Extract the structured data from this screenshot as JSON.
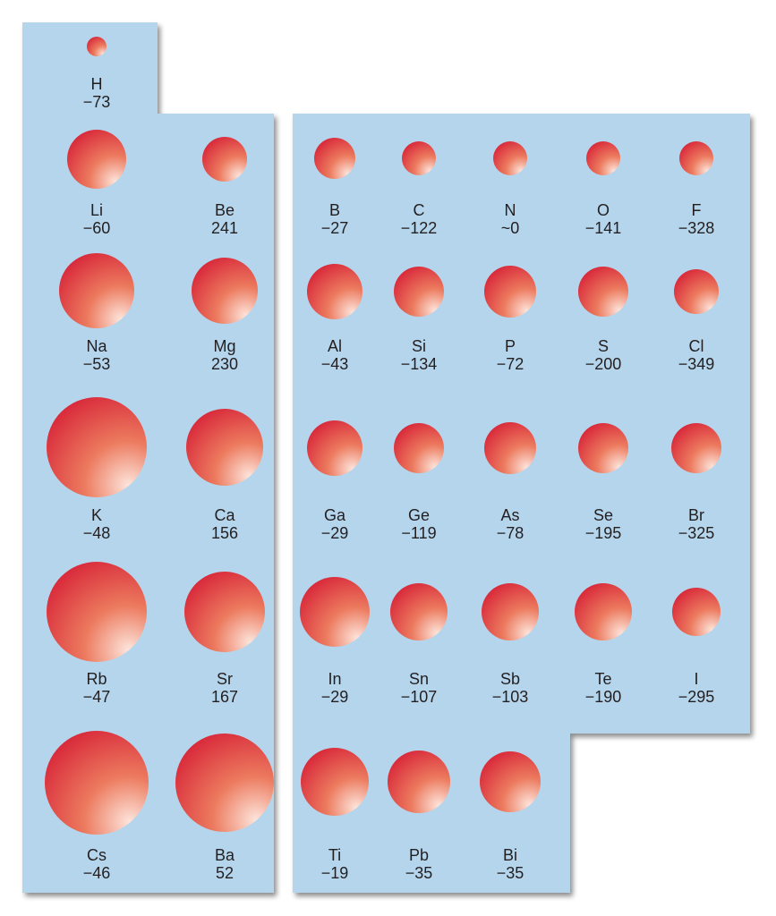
{
  "colors": {
    "panel": "#b5d5ec",
    "atom_highlight": "#fde5dc",
    "atom_mid": "#ec7a5e",
    "atom_edge": "#d8283a",
    "text": "#231f20"
  },
  "left_panel": {
    "elements": [
      {
        "symbol": "H",
        "value": "−73"
      },
      {
        "symbol": "Li",
        "value": "−60"
      },
      {
        "symbol": "Be",
        "value": "241"
      },
      {
        "symbol": "Na",
        "value": "−53"
      },
      {
        "symbol": "Mg",
        "value": "230"
      },
      {
        "symbol": "K",
        "value": "−48"
      },
      {
        "symbol": "Ca",
        "value": "156"
      },
      {
        "symbol": "Rb",
        "value": "−47"
      },
      {
        "symbol": "Sr",
        "value": "167"
      },
      {
        "symbol": "Cs",
        "value": "−46"
      },
      {
        "symbol": "Ba",
        "value": "52"
      }
    ]
  },
  "right_panel": {
    "elements": [
      {
        "symbol": "B",
        "value": "−27"
      },
      {
        "symbol": "C",
        "value": "−122"
      },
      {
        "symbol": "N",
        "value": "~0"
      },
      {
        "symbol": "O",
        "value": "−141"
      },
      {
        "symbol": "F",
        "value": "−328"
      },
      {
        "symbol": "Al",
        "value": "−43"
      },
      {
        "symbol": "Si",
        "value": "−134"
      },
      {
        "symbol": "P",
        "value": "−72"
      },
      {
        "symbol": "S",
        "value": "−200"
      },
      {
        "symbol": "Cl",
        "value": "−349"
      },
      {
        "symbol": "Ga",
        "value": "−29"
      },
      {
        "symbol": "Ge",
        "value": "−119"
      },
      {
        "symbol": "As",
        "value": "−78"
      },
      {
        "symbol": "Se",
        "value": "−195"
      },
      {
        "symbol": "Br",
        "value": "−325"
      },
      {
        "symbol": "In",
        "value": "−29"
      },
      {
        "symbol": "Sn",
        "value": "−107"
      },
      {
        "symbol": "Sb",
        "value": "−103"
      },
      {
        "symbol": "Te",
        "value": "−190"
      },
      {
        "symbol": "I",
        "value": "−295"
      },
      {
        "symbol": "Ti",
        "value": "−19"
      },
      {
        "symbol": "Pb",
        "value": "−35"
      },
      {
        "symbol": "Bi",
        "value": "−35"
      }
    ]
  }
}
